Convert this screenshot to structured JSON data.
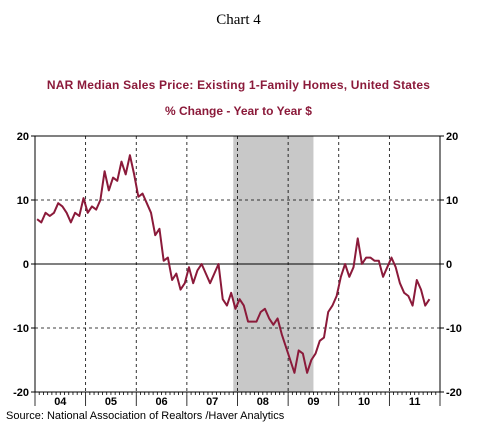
{
  "page": {
    "doc_title": "Chart 4",
    "source": "Source:  National Association of Realtors /Haver Analytics"
  },
  "colors": {
    "series": "#8b1a3a",
    "recession": "#c8c8c8",
    "title": "#8b1a3a"
  },
  "chart_data": {
    "type": "line",
    "title": "NAR Median Sales Price: Existing 1-Family Homes, United States",
    "subtitle": "% Change - Year to Year   $",
    "xlabel": "",
    "ylabel": "",
    "ylim": [
      -20,
      20
    ],
    "yticks": [
      20,
      10,
      0,
      -10,
      -20
    ],
    "ytick_labels": [
      "20",
      "10",
      "0",
      "-10",
      "-20"
    ],
    "xlim": [
      "2004-01",
      "2011-12"
    ],
    "x_tick_labels": [
      "04",
      "05",
      "06",
      "07",
      "08",
      "09",
      "10",
      "11"
    ],
    "grid": "vertical dashed at year boundaries, horizontal dashed at ±10 and ±20",
    "zero_line": true,
    "recession": {
      "start": "2007-12",
      "end": "2009-06"
    },
    "series": [
      {
        "start": "2004-01",
        "values": [
          7.0,
          6.5,
          8.0,
          7.5,
          8.0,
          9.5,
          9.0,
          8.0,
          6.5,
          8.0,
          7.5,
          10.3,
          8.0,
          9.0,
          8.5,
          10.0,
          14.5,
          11.5,
          13.5,
          13.0,
          16.0,
          14.0,
          17.0,
          14.0,
          10.5,
          11.0,
          9.5,
          8.0,
          4.5,
          5.5,
          0.5,
          1.0,
          -2.5,
          -1.5,
          -4.0,
          -3.0,
          -0.5,
          -3.0,
          -1.0,
          0.0,
          -1.5,
          -3.0,
          -1.5,
          0.0,
          -5.5,
          -6.5,
          -4.5,
          -7.0,
          -5.5,
          -6.5,
          -9.0,
          -9.0,
          -9.0,
          -7.5,
          -7.0,
          -8.5,
          -9.5,
          -8.5,
          -11.0,
          -13.0,
          -15.0,
          -17.0,
          -13.5,
          -14.0,
          -17.0,
          -15.0,
          -14.0,
          -12.0,
          -11.5,
          -7.5,
          -6.5,
          -5.0,
          -2.0,
          0.0,
          -2.0,
          -0.5,
          4.0,
          0.0,
          1.0,
          1.0,
          0.5,
          0.5,
          -2.0,
          -0.5,
          1.0,
          -0.5,
          -3.0,
          -4.5,
          -5.0,
          -6.5,
          -2.5,
          -4.0,
          -6.5,
          -5.5
        ]
      }
    ]
  }
}
